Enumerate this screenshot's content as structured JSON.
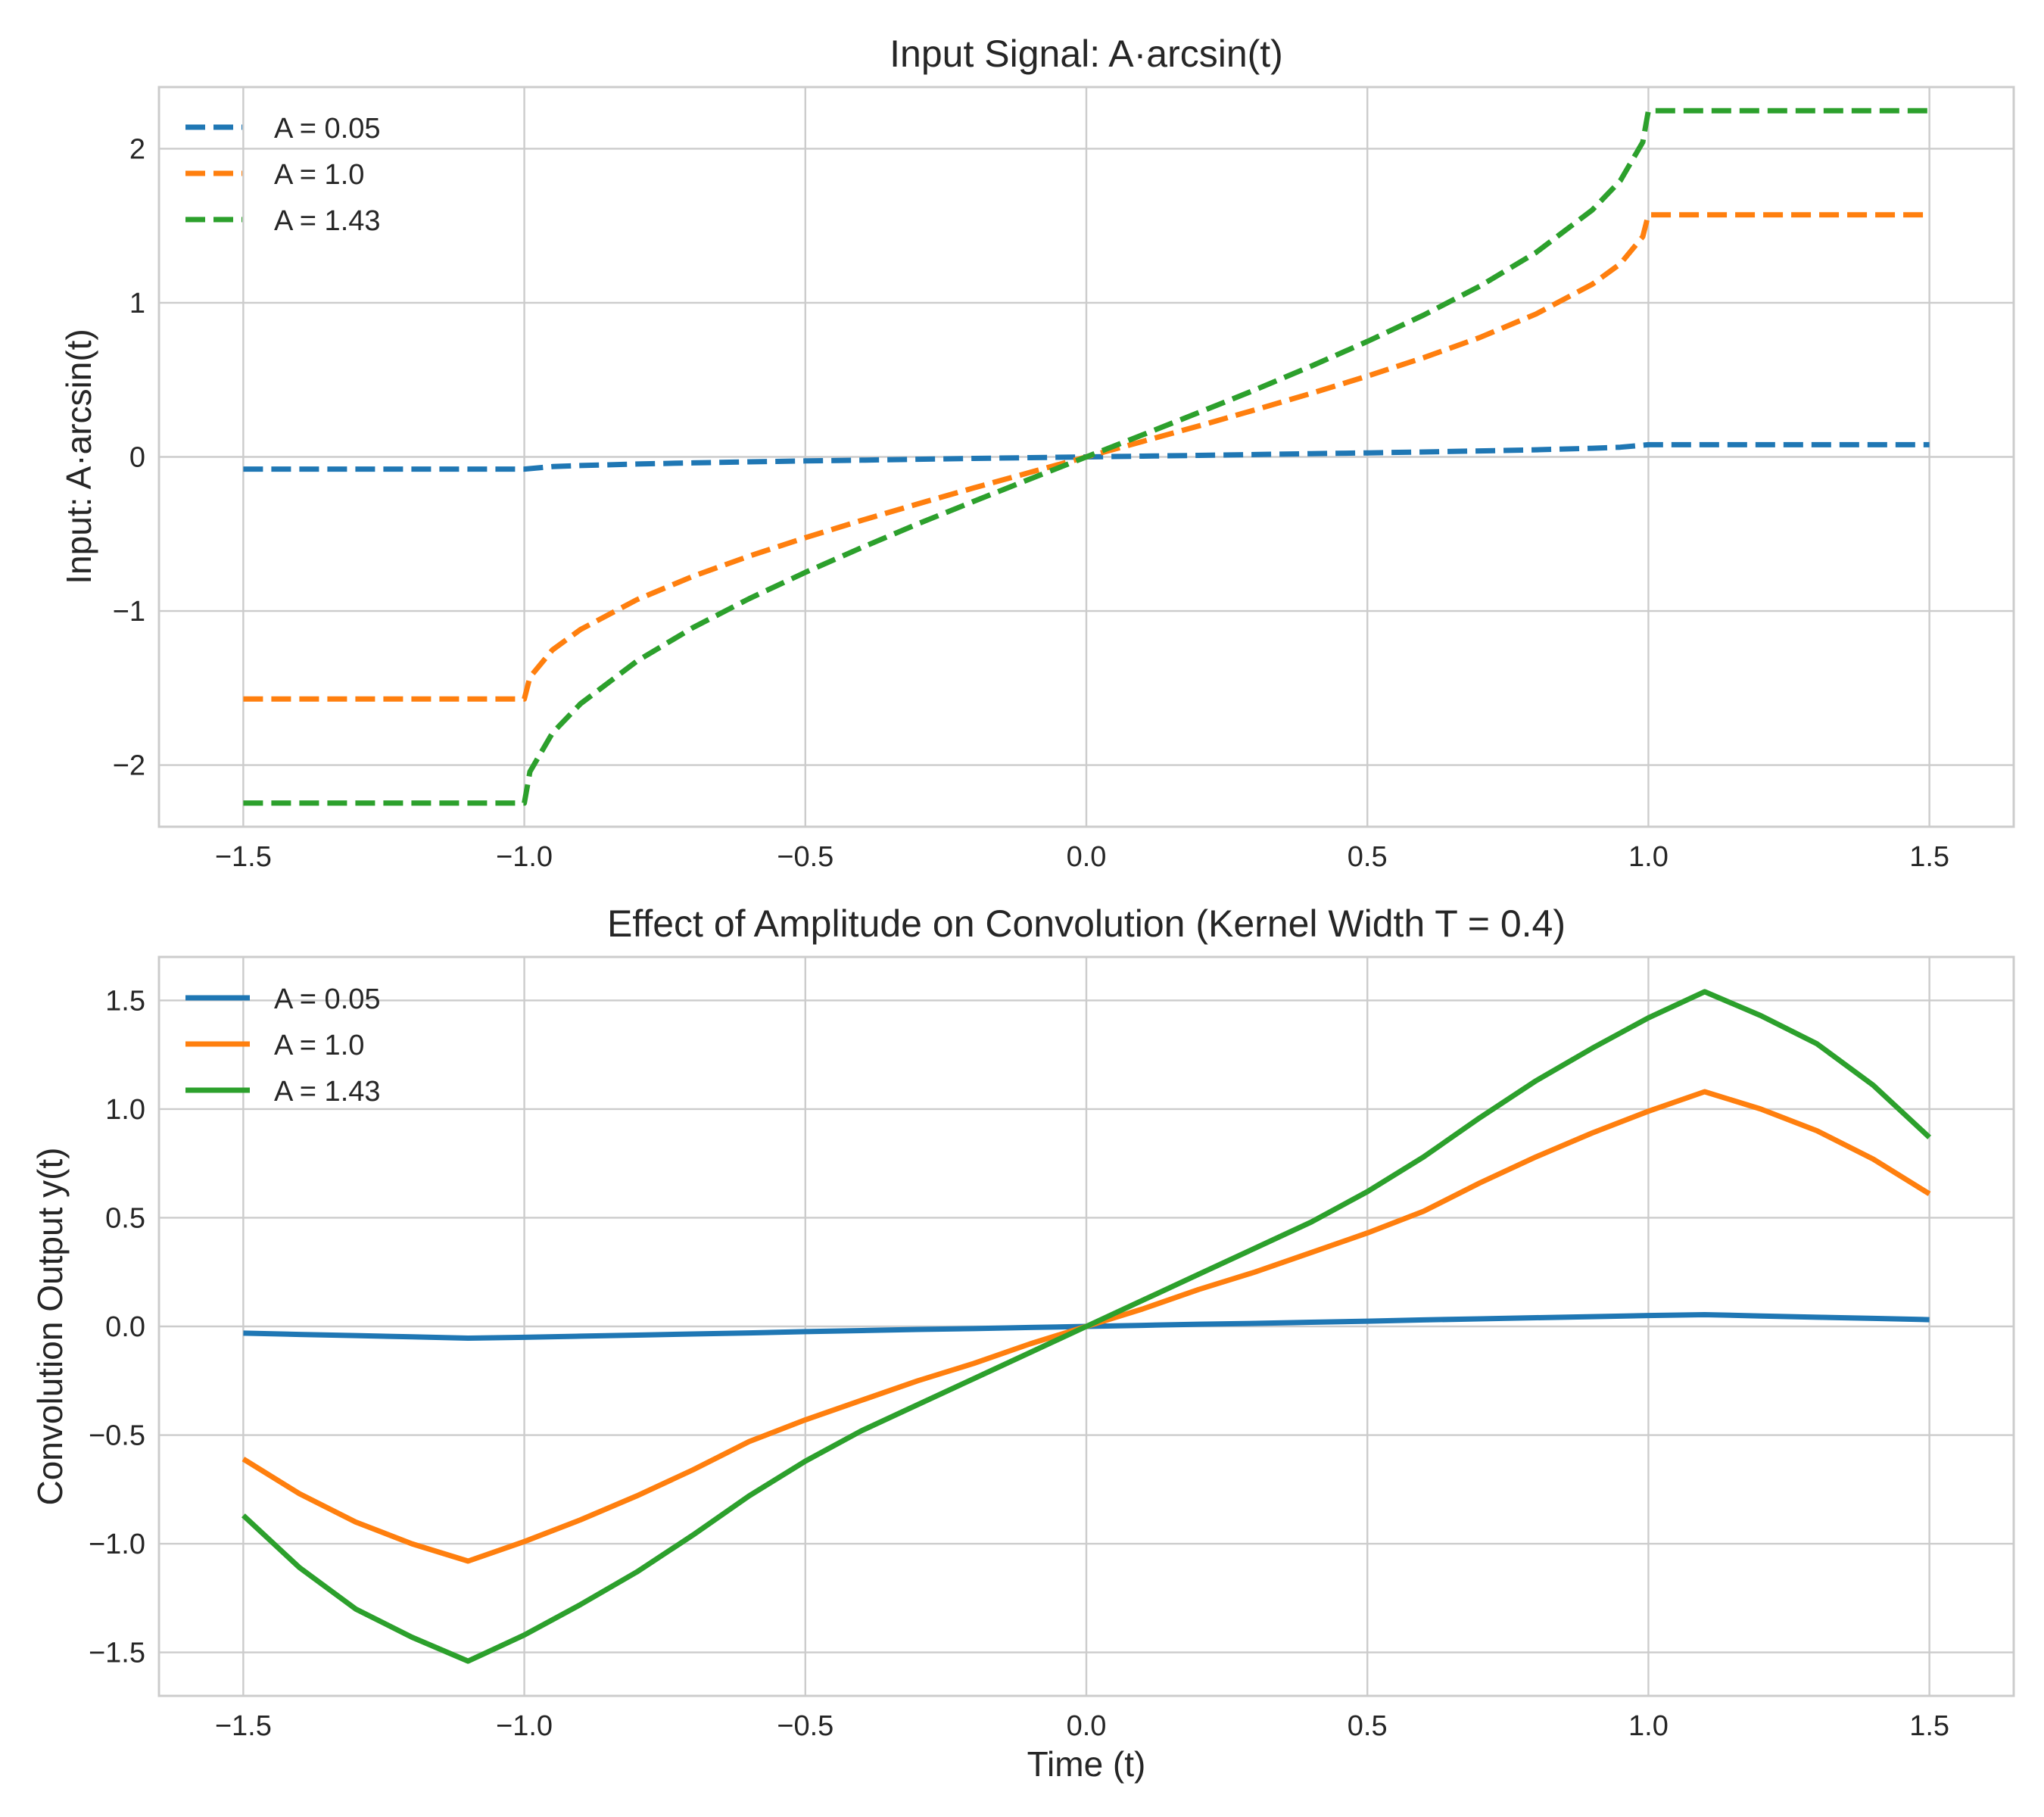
{
  "colors": {
    "A = 0.05": "#1f77b4",
    "A = 1.0": "#ff7f0e",
    "A = 1.43": "#2ca02c"
  },
  "chart_data": [
    {
      "type": "line",
      "line_style": "dashed",
      "title": "Input Signal: A·arcsin(t)",
      "xlabel": "",
      "ylabel": "Input: A·arcsin(t)",
      "xlim": [
        -1.65,
        1.65
      ],
      "ylim": [
        -2.4,
        2.4
      ],
      "xticks": [
        -1.5,
        -1.0,
        -0.5,
        0.0,
        0.5,
        1.0,
        1.5
      ],
      "xtick_labels": [
        "−1.5",
        "−1.0",
        "−0.5",
        "0.0",
        "0.5",
        "1.0",
        "1.5"
      ],
      "yticks": [
        -2,
        -1,
        0,
        1,
        2
      ],
      "ytick_labels": [
        "−2",
        "−1",
        "0",
        "1",
        "2"
      ],
      "grid": true,
      "legend": "top-left",
      "series": [
        {
          "name": "A = 0.05",
          "x": [
            -1.5,
            -1.0,
            -0.95,
            -0.9,
            -0.8,
            -0.7,
            -0.6,
            -0.5,
            -0.4,
            -0.3,
            -0.2,
            -0.1,
            0.0,
            0.1,
            0.2,
            0.3,
            0.4,
            0.5,
            0.6,
            0.7,
            0.8,
            0.9,
            0.95,
            1.0,
            1.5
          ],
          "y": [
            -0.079,
            -0.079,
            -0.063,
            -0.056,
            -0.046,
            -0.039,
            -0.032,
            -0.026,
            -0.021,
            -0.015,
            -0.01,
            -0.005,
            0.0,
            0.005,
            0.01,
            0.015,
            0.021,
            0.026,
            0.032,
            0.039,
            0.046,
            0.056,
            0.063,
            0.079,
            0.079
          ]
        },
        {
          "name": "A = 1.0",
          "x": [
            -1.5,
            -1.0,
            -0.99,
            -0.95,
            -0.9,
            -0.8,
            -0.7,
            -0.6,
            -0.5,
            -0.4,
            -0.3,
            -0.2,
            -0.1,
            0.0,
            0.1,
            0.2,
            0.3,
            0.4,
            0.5,
            0.6,
            0.7,
            0.8,
            0.9,
            0.95,
            0.99,
            1.0,
            1.5
          ],
          "y": [
            -1.571,
            -1.571,
            -1.429,
            -1.253,
            -1.12,
            -0.927,
            -0.775,
            -0.644,
            -0.524,
            -0.412,
            -0.305,
            -0.201,
            -0.1,
            0.0,
            0.1,
            0.201,
            0.305,
            0.412,
            0.524,
            0.644,
            0.775,
            0.927,
            1.12,
            1.253,
            1.429,
            1.571,
            1.571
          ]
        },
        {
          "name": "A = 1.43",
          "x": [
            -1.5,
            -1.0,
            -0.99,
            -0.95,
            -0.9,
            -0.8,
            -0.7,
            -0.6,
            -0.5,
            -0.4,
            -0.3,
            -0.2,
            -0.1,
            0.0,
            0.1,
            0.2,
            0.3,
            0.4,
            0.5,
            0.6,
            0.7,
            0.8,
            0.9,
            0.95,
            0.99,
            1.0,
            1.5
          ],
          "y": [
            -2.246,
            -2.246,
            -2.043,
            -1.792,
            -1.602,
            -1.326,
            -1.108,
            -0.92,
            -0.749,
            -0.589,
            -0.435,
            -0.288,
            -0.143,
            0.0,
            0.143,
            0.288,
            0.435,
            0.589,
            0.749,
            0.92,
            1.108,
            1.326,
            1.602,
            1.792,
            2.043,
            2.246,
            2.246
          ]
        }
      ]
    },
    {
      "type": "line",
      "line_style": "solid",
      "title": "Effect of Amplitude on Convolution (Kernel Width T = 0.4)",
      "xlabel": "Time (t)",
      "ylabel": "Convolution Output y(t)",
      "xlim": [
        -1.65,
        1.65
      ],
      "ylim": [
        -1.7,
        1.7
      ],
      "xticks": [
        -1.5,
        -1.0,
        -0.5,
        0.0,
        0.5,
        1.0,
        1.5
      ],
      "xtick_labels": [
        "−1.5",
        "−1.0",
        "−0.5",
        "0.0",
        "0.5",
        "1.0",
        "1.5"
      ],
      "yticks": [
        -1.5,
        -1.0,
        -0.5,
        0.0,
        0.5,
        1.0,
        1.5
      ],
      "ytick_labels": [
        "−1.5",
        "−1.0",
        "−0.5",
        "0.0",
        "0.5",
        "1.0",
        "1.5"
      ],
      "grid": true,
      "legend": "top-left",
      "series": [
        {
          "name": "A = 0.05",
          "x": [
            -1.5,
            -1.4,
            -1.3,
            -1.2,
            -1.1,
            -1.0,
            -0.9,
            -0.8,
            -0.7,
            -0.6,
            -0.5,
            -0.4,
            -0.3,
            -0.2,
            -0.1,
            0.0,
            0.1,
            0.2,
            0.3,
            0.4,
            0.5,
            0.6,
            0.7,
            0.8,
            0.9,
            1.0,
            1.1,
            1.2,
            1.3,
            1.4,
            1.5
          ],
          "y": [
            -0.031,
            -0.037,
            -0.042,
            -0.048,
            -0.054,
            -0.05,
            -0.045,
            -0.04,
            -0.035,
            -0.03,
            -0.024,
            -0.019,
            -0.014,
            -0.01,
            -0.005,
            0.0,
            0.005,
            0.01,
            0.014,
            0.019,
            0.024,
            0.03,
            0.035,
            0.04,
            0.045,
            0.05,
            0.054,
            0.048,
            0.042,
            0.037,
            0.031
          ]
        },
        {
          "name": "A = 1.0",
          "x": [
            -1.5,
            -1.4,
            -1.3,
            -1.2,
            -1.1,
            -1.0,
            -0.9,
            -0.8,
            -0.7,
            -0.6,
            -0.5,
            -0.4,
            -0.3,
            -0.2,
            -0.1,
            0.0,
            0.1,
            0.2,
            0.3,
            0.4,
            0.5,
            0.6,
            0.7,
            0.8,
            0.9,
            1.0,
            1.1,
            1.2,
            1.3,
            1.4,
            1.5
          ],
          "y": [
            -0.61,
            -0.77,
            -0.9,
            -1.0,
            -1.08,
            -0.99,
            -0.89,
            -0.78,
            -0.66,
            -0.53,
            -0.43,
            -0.34,
            -0.25,
            -0.17,
            -0.08,
            0.0,
            0.08,
            0.17,
            0.25,
            0.34,
            0.43,
            0.53,
            0.66,
            0.78,
            0.89,
            0.99,
            1.08,
            1.0,
            0.9,
            0.77,
            0.61
          ]
        },
        {
          "name": "A = 1.43",
          "x": [
            -1.5,
            -1.4,
            -1.3,
            -1.2,
            -1.1,
            -1.0,
            -0.9,
            -0.8,
            -0.7,
            -0.6,
            -0.5,
            -0.4,
            -0.3,
            -0.2,
            -0.1,
            0.0,
            0.1,
            0.2,
            0.3,
            0.4,
            0.5,
            0.6,
            0.7,
            0.8,
            0.9,
            1.0,
            1.1,
            1.2,
            1.3,
            1.4,
            1.5
          ],
          "y": [
            -0.87,
            -1.11,
            -1.3,
            -1.43,
            -1.54,
            -1.42,
            -1.28,
            -1.13,
            -0.96,
            -0.78,
            -0.62,
            -0.48,
            -0.36,
            -0.24,
            -0.12,
            0.0,
            0.12,
            0.24,
            0.36,
            0.48,
            0.62,
            0.78,
            0.96,
            1.13,
            1.28,
            1.42,
            1.54,
            1.43,
            1.3,
            1.11,
            0.87
          ]
        }
      ]
    }
  ]
}
